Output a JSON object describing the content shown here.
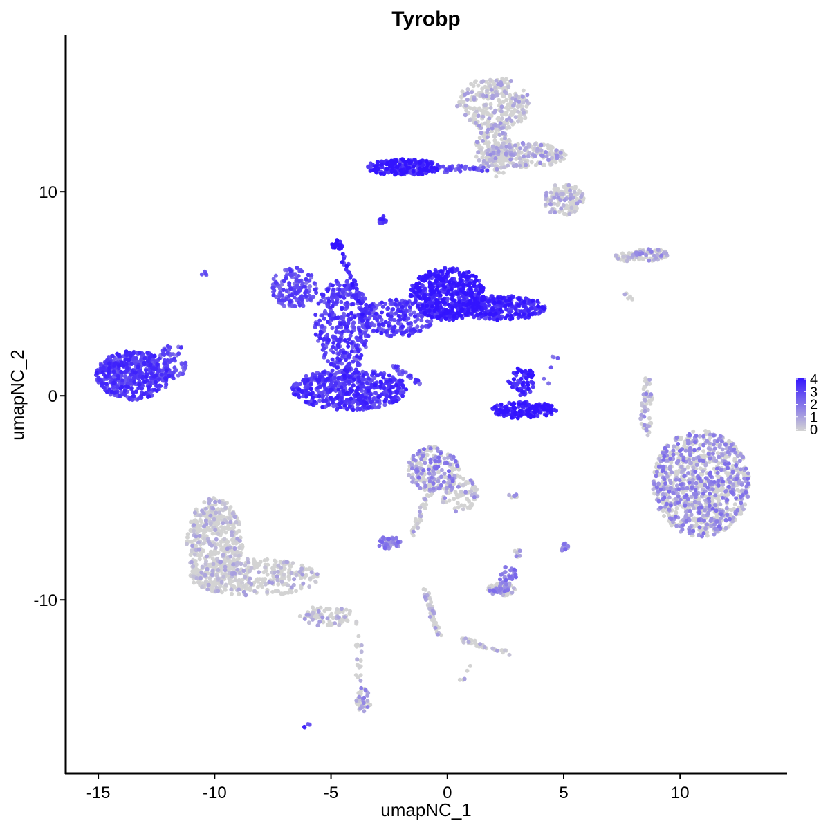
{
  "chart_data": {
    "type": "scatter",
    "title": "Tyrobp",
    "xlabel": "umapNC_1",
    "ylabel": "umapNC_2",
    "xlim": [
      -16.4,
      14.6
    ],
    "ylim": [
      -18.5,
      17.7
    ],
    "xticks": [
      -15,
      -10,
      -5,
      0,
      5,
      10
    ],
    "xtick_labels": [
      "-15",
      "-10",
      "-5",
      "0",
      "5",
      "10"
    ],
    "yticks": [
      -10,
      0,
      10
    ],
    "ytick_labels": [
      "-10",
      "0",
      "10"
    ],
    "grid": false,
    "legend": {
      "placement": "right",
      "type": "continuous colorbar",
      "ticks": [
        0,
        1,
        2,
        3,
        4
      ],
      "tick_labels": [
        "0",
        "1",
        "2",
        "3",
        "4"
      ],
      "low_color": "#d3d3d3",
      "high_color": "#3314ff"
    },
    "clusters": [
      {
        "shape": "ellipse",
        "cx": 0.0,
        "cy": 5.0,
        "rx": 1.6,
        "ry": 1.3,
        "n": 520,
        "expr": 3.6
      },
      {
        "shape": "ellipse",
        "cx": 2.3,
        "cy": 4.3,
        "rx": 1.9,
        "ry": 0.6,
        "n": 320,
        "expr": 3.4
      },
      {
        "shape": "ellipse",
        "cx": -4.2,
        "cy": 0.3,
        "rx": 2.5,
        "ry": 1.0,
        "n": 560,
        "expr": 3.1
      },
      {
        "shape": "ellipse",
        "cx": -4.5,
        "cy": 3.5,
        "rx": 1.2,
        "ry": 2.2,
        "n": 380,
        "expr": 2.9
      },
      {
        "shape": "ellipse",
        "cx": -6.6,
        "cy": 5.3,
        "rx": 1.0,
        "ry": 1.0,
        "n": 150,
        "expr": 2.6
      },
      {
        "shape": "ellipse",
        "cx": -2.2,
        "cy": 3.8,
        "rx": 1.6,
        "ry": 0.9,
        "n": 220,
        "expr": 3.0
      },
      {
        "shape": "ellipse",
        "cx": -13.5,
        "cy": 1.0,
        "rx": 1.6,
        "ry": 1.2,
        "n": 520,
        "expr": 3.0
      },
      {
        "shape": "ellipse",
        "cx": -11.8,
        "cy": 1.7,
        "rx": 0.6,
        "ry": 0.9,
        "n": 60,
        "expr": 2.6
      },
      {
        "shape": "ellipse",
        "cx": 3.3,
        "cy": -0.7,
        "rx": 1.4,
        "ry": 0.4,
        "n": 170,
        "expr": 3.8
      },
      {
        "shape": "ellipse",
        "cx": 3.2,
        "cy": 0.7,
        "rx": 0.6,
        "ry": 0.7,
        "n": 60,
        "expr": 3.5
      },
      {
        "shape": "ellipse",
        "cx": -1.9,
        "cy": 11.2,
        "rx": 1.6,
        "ry": 0.4,
        "n": 220,
        "expr": 3.5
      },
      {
        "shape": "ellipse",
        "cx": 0.5,
        "cy": 11.1,
        "rx": 1.4,
        "ry": 0.2,
        "n": 40,
        "expr": 2.6
      },
      {
        "shape": "ellipse",
        "cx": 2.0,
        "cy": 14.3,
        "rx": 1.6,
        "ry": 1.3,
        "n": 300,
        "expr": 0.5
      },
      {
        "shape": "ellipse",
        "cx": 2.0,
        "cy": 12.0,
        "rx": 0.8,
        "ry": 1.3,
        "n": 150,
        "expr": 0.5
      },
      {
        "shape": "ellipse",
        "cx": 3.4,
        "cy": 11.8,
        "rx": 1.7,
        "ry": 0.6,
        "n": 200,
        "expr": 0.7
      },
      {
        "shape": "ellipse",
        "cx": 5.0,
        "cy": 9.6,
        "rx": 0.9,
        "ry": 0.8,
        "n": 120,
        "expr": 0.5
      },
      {
        "shape": "ellipse",
        "cx": 8.7,
        "cy": 6.9,
        "rx": 0.8,
        "ry": 0.3,
        "n": 70,
        "expr": 1.1
      },
      {
        "shape": "ellipse",
        "cx": 7.7,
        "cy": 6.8,
        "rx": 0.8,
        "ry": 0.2,
        "n": 35,
        "expr": 0.6
      },
      {
        "shape": "ellipse",
        "cx": 10.9,
        "cy": -4.3,
        "rx": 2.1,
        "ry": 2.6,
        "n": 1000,
        "expr": 1.4
      },
      {
        "shape": "ellipse",
        "cx": 8.6,
        "cy": -0.5,
        "rx": 0.2,
        "ry": 1.5,
        "n": 40,
        "expr": 0.9
      },
      {
        "shape": "ellipse",
        "cx": -10.0,
        "cy": -7.3,
        "rx": 1.2,
        "ry": 2.3,
        "n": 450,
        "expr": 0.3
      },
      {
        "shape": "ellipse",
        "cx": -8.3,
        "cy": -8.9,
        "rx": 2.8,
        "ry": 0.9,
        "n": 320,
        "expr": 0.4
      },
      {
        "shape": "ellipse",
        "cx": -5.2,
        "cy": -10.8,
        "rx": 1.2,
        "ry": 0.5,
        "n": 80,
        "expr": 0.5
      },
      {
        "shape": "ellipse",
        "cx": -3.6,
        "cy": -14.9,
        "rx": 0.35,
        "ry": 0.6,
        "n": 40,
        "expr": 1.1
      },
      {
        "shape": "ellipse",
        "cx": -0.6,
        "cy": -3.6,
        "rx": 1.1,
        "ry": 1.1,
        "n": 200,
        "expr": 1.4
      },
      {
        "shape": "ellipse",
        "cx": 0.5,
        "cy": -4.8,
        "rx": 0.8,
        "ry": 0.9,
        "n": 80,
        "expr": 0.8
      },
      {
        "shape": "ellipse",
        "cx": -2.5,
        "cy": -7.2,
        "rx": 0.5,
        "ry": 0.3,
        "n": 40,
        "expr": 1.5
      },
      {
        "shape": "ellipse",
        "cx": 2.3,
        "cy": -9.5,
        "rx": 0.6,
        "ry": 0.3,
        "n": 60,
        "expr": 1.4
      },
      {
        "shape": "ellipse",
        "cx": 2.6,
        "cy": -8.8,
        "rx": 0.4,
        "ry": 0.5,
        "n": 30,
        "expr": 1.6
      },
      {
        "shape": "ellipse",
        "cx": 5.0,
        "cy": -7.4,
        "rx": 0.2,
        "ry": 0.2,
        "n": 15,
        "expr": 1.5
      },
      {
        "shape": "ellipse",
        "cx": -2.8,
        "cy": 8.6,
        "rx": 0.2,
        "ry": 0.2,
        "n": 12,
        "expr": 3.2
      },
      {
        "shape": "ellipse",
        "cx": -4.7,
        "cy": 7.4,
        "rx": 0.25,
        "ry": 0.25,
        "n": 22,
        "expr": 3.8
      },
      {
        "shape": "ellipse",
        "cx": 3.0,
        "cy": -7.7,
        "rx": 0.25,
        "ry": 0.2,
        "n": 8,
        "expr": 1.2
      },
      {
        "shape": "ellipse",
        "cx": 2.8,
        "cy": -4.9,
        "rx": 0.4,
        "ry": 0.1,
        "n": 8,
        "expr": 1.0
      },
      {
        "shape": "segment",
        "x1": -4.5,
        "y1": 6.9,
        "x2": -3.5,
        "y2": 3.8,
        "n": 35,
        "expr": 3.3
      },
      {
        "shape": "segment",
        "x1": -2.4,
        "y1": 1.5,
        "x2": -1.2,
        "y2": 0.6,
        "n": 30,
        "expr": 2.8
      },
      {
        "shape": "segment",
        "x1": -3.9,
        "y1": 2.8,
        "x2": -3.8,
        "y2": 0.5,
        "n": 20,
        "expr": 2.9
      },
      {
        "shape": "segment",
        "x1": -0.6,
        "y1": -4.3,
        "x2": -1.5,
        "y2": -6.8,
        "n": 40,
        "expr": 0.7
      },
      {
        "shape": "segment",
        "x1": -1.0,
        "y1": -9.5,
        "x2": -0.3,
        "y2": -11.8,
        "n": 45,
        "expr": 0.5
      },
      {
        "shape": "segment",
        "x1": 0.6,
        "y1": -11.9,
        "x2": 2.6,
        "y2": -12.6,
        "n": 35,
        "expr": 0.5
      },
      {
        "shape": "segment",
        "x1": -3.8,
        "y1": -11.0,
        "x2": -3.8,
        "y2": -14.3,
        "n": 20,
        "expr": 0.4
      },
      {
        "shape": "segment",
        "x1": 8.5,
        "y1": -2.0,
        "x2": 8.3,
        "y2": 0.5,
        "n": 12,
        "expr": 0.6
      },
      {
        "shape": "segment",
        "x1": 7.6,
        "y1": 5.0,
        "x2": 7.9,
        "y2": 4.7,
        "n": 5,
        "expr": 0.3
      },
      {
        "shape": "segment",
        "x1": 1.0,
        "y1": -13.3,
        "x2": 0.6,
        "y2": -13.9,
        "n": 5,
        "expr": 0.3
      },
      {
        "shape": "segment",
        "x1": 4.8,
        "y1": 2.5,
        "x2": 4.2,
        "y2": 0.5,
        "n": 6,
        "expr": 2.5
      },
      {
        "shape": "segment",
        "x1": -10.5,
        "y1": 6.1,
        "x2": -10.4,
        "y2": 6.0,
        "n": 4,
        "expr": 2.4
      },
      {
        "shape": "segment",
        "x1": -6.1,
        "y1": -16.3,
        "x2": -6.0,
        "y2": -16.2,
        "n": 4,
        "expr": 3.0
      }
    ]
  }
}
